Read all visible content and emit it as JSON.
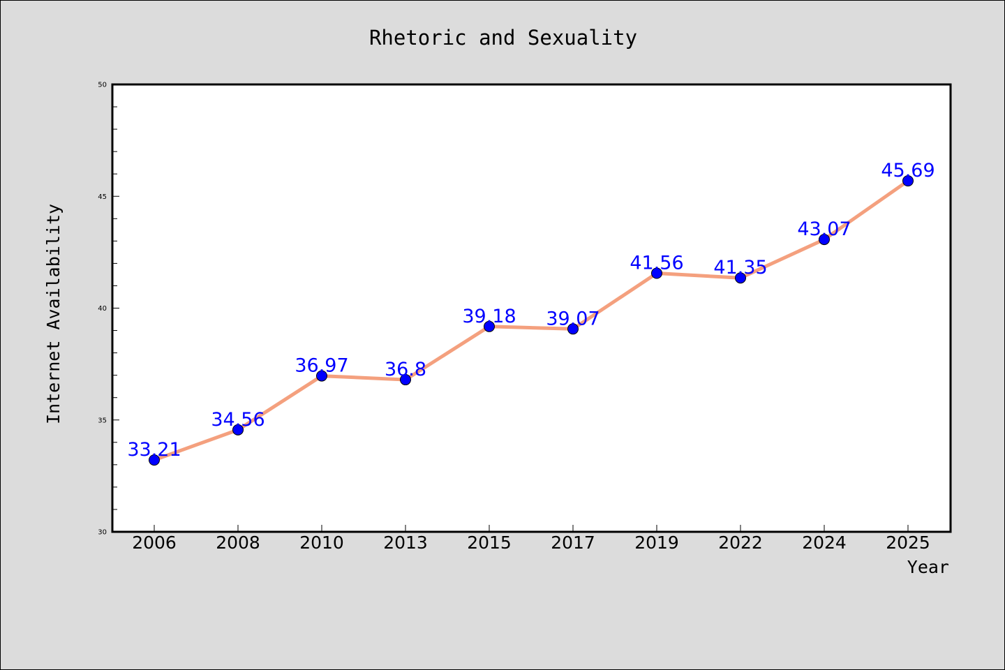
{
  "chart_data": {
    "type": "line",
    "title": "Rhetoric and Sexuality",
    "xlabel": "Year",
    "ylabel": "Internet Availability",
    "categories": [
      "2006",
      "2008",
      "2010",
      "2013",
      "2015",
      "2017",
      "2019",
      "2022",
      "2024",
      "2025"
    ],
    "series": [
      {
        "values": [
          33.21,
          34.56,
          36.97,
          36.8,
          39.18,
          39.07,
          41.56,
          41.35,
          43.07,
          45.69
        ],
        "labels": [
          "33.21",
          "34.56",
          "36.97",
          "36.8",
          "39.18",
          "39.07",
          "41.56",
          "41.35",
          "43.07",
          "45.69"
        ]
      }
    ],
    "ylim": [
      30,
      50
    ],
    "y_major_ticks": [
      30,
      35,
      40,
      45,
      50
    ],
    "y_major_tick_labels": [
      "30",
      "35",
      "40",
      "45",
      "50"
    ],
    "y_minor_step": 1,
    "grid": false,
    "legend": "none",
    "colors": {
      "background": "#dcdcdc",
      "plot_background": "#ffffff",
      "line": "#f4a07e",
      "marker": "#0000ff",
      "data_label": "#0000ff"
    }
  }
}
